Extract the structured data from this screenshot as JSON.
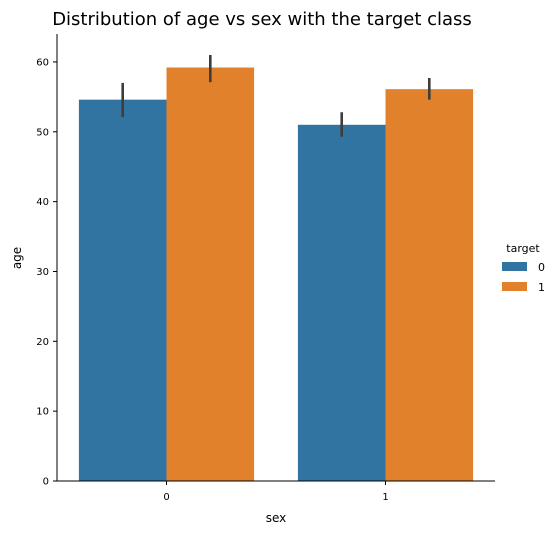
{
  "chart_data": {
    "type": "bar",
    "title": "Distribution of age vs sex with the target class",
    "xlabel": "sex",
    "ylabel": "age",
    "categories": [
      "0",
      "1"
    ],
    "ylim": [
      0,
      64
    ],
    "yticks": [
      0,
      10,
      20,
      30,
      40,
      50,
      60
    ],
    "grid": false,
    "legend": {
      "title": "target",
      "position": "right"
    },
    "series": [
      {
        "name": "0",
        "color": "#3274a1",
        "values": [
          54.6,
          51.0
        ],
        "error_low": [
          52.1,
          49.3
        ],
        "error_high": [
          57.0,
          52.8
        ]
      },
      {
        "name": "1",
        "color": "#e1812c",
        "values": [
          59.2,
          56.1
        ],
        "error_low": [
          57.1,
          54.6
        ],
        "error_high": [
          61.0,
          57.7
        ]
      }
    ]
  }
}
